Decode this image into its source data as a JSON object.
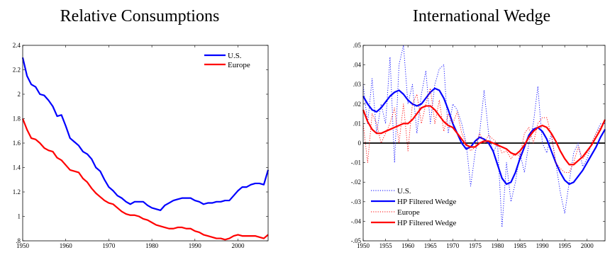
{
  "chart_data": [
    {
      "type": "line",
      "title": "Relative Consumptions",
      "xlabel": "",
      "ylabel": "",
      "xlim": [
        1950,
        2007
      ],
      "ylim": [
        0.8,
        2.4
      ],
      "xticks": [
        1950,
        1960,
        1970,
        1980,
        1990,
        2000
      ],
      "yticks": [
        0.8,
        1,
        1.2,
        1.4,
        1.6,
        1.8,
        2,
        2.2,
        2.4
      ],
      "grid": false,
      "legend_position": "top-right",
      "series": [
        {
          "name": "U.S.",
          "color": "#0000ff",
          "line_style": "solid",
          "x": [
            1950,
            1951,
            1952,
            1953,
            1954,
            1955,
            1956,
            1957,
            1958,
            1959,
            1960,
            1961,
            1962,
            1963,
            1964,
            1965,
            1966,
            1967,
            1968,
            1969,
            1970,
            1971,
            1972,
            1973,
            1974,
            1975,
            1976,
            1977,
            1978,
            1979,
            1980,
            1981,
            1982,
            1983,
            1984,
            1985,
            1986,
            1987,
            1988,
            1989,
            1990,
            1991,
            1992,
            1993,
            1994,
            1995,
            1996,
            1997,
            1998,
            1999,
            2000,
            2001,
            2002,
            2003,
            2004,
            2005,
            2006,
            2007
          ],
          "y": [
            2.3,
            2.15,
            2.08,
            2.06,
            2.0,
            1.99,
            1.95,
            1.9,
            1.82,
            1.83,
            1.74,
            1.64,
            1.61,
            1.58,
            1.53,
            1.51,
            1.47,
            1.4,
            1.37,
            1.3,
            1.24,
            1.21,
            1.17,
            1.15,
            1.12,
            1.1,
            1.12,
            1.12,
            1.12,
            1.09,
            1.07,
            1.06,
            1.05,
            1.09,
            1.11,
            1.13,
            1.14,
            1.15,
            1.15,
            1.15,
            1.13,
            1.12,
            1.1,
            1.11,
            1.11,
            1.12,
            1.12,
            1.13,
            1.13,
            1.17,
            1.21,
            1.24,
            1.24,
            1.26,
            1.27,
            1.27,
            1.26,
            1.38
          ]
        },
        {
          "name": "Europe",
          "color": "#ff0000",
          "line_style": "solid",
          "x": [
            1950,
            1951,
            1952,
            1953,
            1954,
            1955,
            1956,
            1957,
            1958,
            1959,
            1960,
            1961,
            1962,
            1963,
            1964,
            1965,
            1966,
            1967,
            1968,
            1969,
            1970,
            1971,
            1972,
            1973,
            1974,
            1975,
            1976,
            1977,
            1978,
            1979,
            1980,
            1981,
            1982,
            1983,
            1984,
            1985,
            1986,
            1987,
            1988,
            1989,
            1990,
            1991,
            1992,
            1993,
            1994,
            1995,
            1996,
            1997,
            1998,
            1999,
            2000,
            2001,
            2002,
            2003,
            2004,
            2005,
            2006,
            2007
          ],
          "y": [
            1.8,
            1.71,
            1.64,
            1.63,
            1.6,
            1.56,
            1.54,
            1.53,
            1.48,
            1.46,
            1.42,
            1.38,
            1.37,
            1.36,
            1.31,
            1.28,
            1.23,
            1.19,
            1.16,
            1.13,
            1.11,
            1.1,
            1.07,
            1.04,
            1.02,
            1.01,
            1.01,
            1.0,
            0.98,
            0.97,
            0.95,
            0.93,
            0.92,
            0.91,
            0.9,
            0.9,
            0.91,
            0.91,
            0.9,
            0.9,
            0.88,
            0.87,
            0.85,
            0.84,
            0.83,
            0.82,
            0.82,
            0.81,
            0.82,
            0.84,
            0.85,
            0.84,
            0.84,
            0.84,
            0.84,
            0.83,
            0.82,
            0.85
          ]
        }
      ]
    },
    {
      "type": "line",
      "title": "International Wedge",
      "xlabel": "",
      "ylabel": "",
      "xlim": [
        1950,
        2004
      ],
      "ylim": [
        -0.05,
        0.05
      ],
      "xticks": [
        1950,
        1955,
        1960,
        1965,
        1970,
        1975,
        1980,
        1985,
        1990,
        1995,
        2000
      ],
      "yticks": [
        -0.05,
        -0.04,
        -0.03,
        -0.02,
        -0.01,
        0,
        0.01,
        0.02,
        0.03,
        0.04,
        0.05
      ],
      "grid": false,
      "legend_position": "bottom-left",
      "zero_line": true,
      "series": [
        {
          "name": "U.S.",
          "color": "#0000ff",
          "line_style": "dotted",
          "x": [
            1950,
            1951,
            1952,
            1953,
            1954,
            1955,
            1956,
            1957,
            1958,
            1959,
            1960,
            1961,
            1962,
            1963,
            1964,
            1965,
            1966,
            1967,
            1968,
            1969,
            1970,
            1971,
            1972,
            1973,
            1974,
            1975,
            1976,
            1977,
            1978,
            1979,
            1980,
            1981,
            1982,
            1983,
            1984,
            1985,
            1986,
            1987,
            1988,
            1989,
            1990,
            1991,
            1992,
            1993,
            1994,
            1995,
            1996,
            1997,
            1998,
            1999,
            2000,
            2001,
            2002,
            2003,
            2004
          ],
          "y": [
            0.03,
            0.01,
            0.033,
            0.005,
            0.02,
            0.01,
            0.044,
            -0.01,
            0.04,
            0.05,
            0.02,
            0.03,
            0.005,
            0.025,
            0.037,
            0.01,
            0.03,
            0.038,
            0.04,
            0.005,
            0.02,
            0.017,
            0.01,
            0.0,
            -0.022,
            -0.005,
            0.005,
            0.027,
            0.005,
            -0.005,
            0.0,
            -0.043,
            -0.01,
            -0.03,
            -0.02,
            -0.005,
            -0.015,
            0.0,
            0.01,
            0.029,
            0.0,
            -0.005,
            0.005,
            -0.01,
            -0.025,
            -0.036,
            -0.02,
            -0.005,
            0.0,
            -0.012,
            -0.008,
            0.0,
            0.005,
            0.01,
            0.01
          ]
        },
        {
          "name": "HP Filtered Wedge",
          "color": "#0000ff",
          "line_style": "solid",
          "x": [
            1950,
            1951,
            1952,
            1953,
            1954,
            1955,
            1956,
            1957,
            1958,
            1959,
            1960,
            1961,
            1962,
            1963,
            1964,
            1965,
            1966,
            1967,
            1968,
            1969,
            1970,
            1971,
            1972,
            1973,
            1974,
            1975,
            1976,
            1977,
            1978,
            1979,
            1980,
            1981,
            1982,
            1983,
            1984,
            1985,
            1986,
            1987,
            1988,
            1989,
            1990,
            1991,
            1992,
            1993,
            1994,
            1995,
            1996,
            1997,
            1998,
            1999,
            2000,
            2001,
            2002,
            2003,
            2004
          ],
          "y": [
            0.024,
            0.02,
            0.017,
            0.016,
            0.018,
            0.021,
            0.024,
            0.026,
            0.027,
            0.025,
            0.022,
            0.02,
            0.019,
            0.02,
            0.023,
            0.026,
            0.028,
            0.027,
            0.023,
            0.017,
            0.01,
            0.005,
            0.0,
            -0.003,
            -0.002,
            0.001,
            0.003,
            0.002,
            0.0,
            -0.004,
            -0.011,
            -0.018,
            -0.021,
            -0.02,
            -0.015,
            -0.008,
            -0.002,
            0.004,
            0.007,
            0.008,
            0.006,
            0.002,
            -0.004,
            -0.01,
            -0.015,
            -0.019,
            -0.021,
            -0.02,
            -0.017,
            -0.014,
            -0.01,
            -0.006,
            -0.002,
            0.003,
            0.007
          ]
        },
        {
          "name": "Europe",
          "color": "#ff0000",
          "line_style": "dotted",
          "x": [
            1950,
            1951,
            1952,
            1953,
            1954,
            1955,
            1956,
            1957,
            1958,
            1959,
            1960,
            1961,
            1962,
            1963,
            1964,
            1965,
            1966,
            1967,
            1968,
            1969,
            1970,
            1971,
            1972,
            1973,
            1974,
            1975,
            1976,
            1977,
            1978,
            1979,
            1980,
            1981,
            1982,
            1983,
            1984,
            1985,
            1986,
            1987,
            1988,
            1989,
            1990,
            1991,
            1992,
            1993,
            1994,
            1995,
            1996,
            1997,
            1998,
            1999,
            2000,
            2001,
            2002,
            2003,
            2004
          ],
          "y": [
            0.01,
            -0.01,
            0.015,
            0.01,
            0.0,
            0.005,
            0.01,
            0.018,
            0.0,
            0.02,
            -0.004,
            0.02,
            0.025,
            0.01,
            0.02,
            0.028,
            0.01,
            0.022,
            0.006,
            0.015,
            0.01,
            0.016,
            0.005,
            0.0,
            -0.004,
            -0.002,
            0.005,
            0.0,
            0.004,
            0.002,
            0.0,
            -0.005,
            -0.004,
            -0.008,
            -0.005,
            -0.007,
            0.005,
            0.008,
            0.0,
            0.01,
            0.013,
            0.013,
            0.004,
            -0.01,
            -0.013,
            -0.015,
            -0.015,
            -0.01,
            -0.002,
            -0.008,
            -0.005,
            0.0,
            0.005,
            0.008,
            0.012
          ]
        },
        {
          "name": "HP Filtered Wedge",
          "color": "#ff0000",
          "line_style": "solid",
          "x": [
            1950,
            1951,
            1952,
            1953,
            1954,
            1955,
            1956,
            1957,
            1958,
            1959,
            1960,
            1961,
            1962,
            1963,
            1964,
            1965,
            1966,
            1967,
            1968,
            1969,
            1970,
            1971,
            1972,
            1973,
            1974,
            1975,
            1976,
            1977,
            1978,
            1979,
            1980,
            1981,
            1982,
            1983,
            1984,
            1985,
            1986,
            1987,
            1988,
            1989,
            1990,
            1991,
            1992,
            1993,
            1994,
            1995,
            1996,
            1997,
            1998,
            1999,
            2000,
            2001,
            2002,
            2003,
            2004
          ],
          "y": [
            0.017,
            0.011,
            0.007,
            0.005,
            0.005,
            0.006,
            0.007,
            0.008,
            0.009,
            0.01,
            0.01,
            0.012,
            0.015,
            0.018,
            0.019,
            0.019,
            0.017,
            0.014,
            0.011,
            0.009,
            0.008,
            0.005,
            0.002,
            -0.001,
            -0.002,
            -0.002,
            0.0,
            0.001,
            0.001,
            0.0,
            -0.001,
            -0.002,
            -0.003,
            -0.005,
            -0.006,
            -0.004,
            -0.001,
            0.003,
            0.006,
            0.008,
            0.009,
            0.008,
            0.005,
            0.001,
            -0.004,
            -0.008,
            -0.011,
            -0.011,
            -0.009,
            -0.007,
            -0.004,
            -0.001,
            0.003,
            0.007,
            0.012
          ]
        }
      ]
    }
  ]
}
